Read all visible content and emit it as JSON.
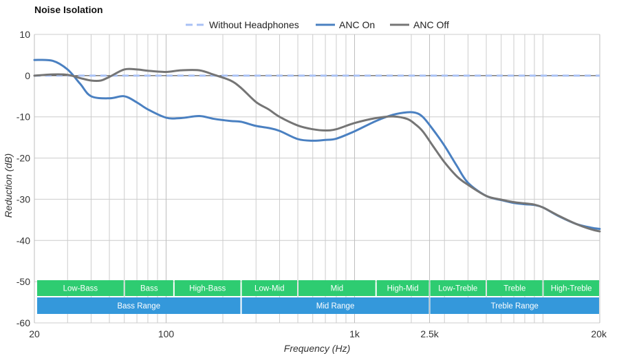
{
  "chart_data": {
    "type": "line",
    "title": "Noise Isolation",
    "xlabel": "Frequency (Hz)",
    "ylabel": "Reduction (dB)",
    "xscale": "log",
    "xlim": [
      20,
      20000
    ],
    "ylim": [
      -60,
      10
    ],
    "x_ticks": [
      {
        "value": 20,
        "label": "20"
      },
      {
        "value": 100,
        "label": "100"
      },
      {
        "value": 1000,
        "label": "1k"
      },
      {
        "value": 2500,
        "label": "2.5k"
      },
      {
        "value": 20000,
        "label": "20k"
      }
    ],
    "y_ticks": [
      {
        "value": 10,
        "label": "10"
      },
      {
        "value": 0,
        "label": "0"
      },
      {
        "value": -10,
        "label": "-10"
      },
      {
        "value": -20,
        "label": "-20"
      },
      {
        "value": -30,
        "label": "-30"
      },
      {
        "value": -40,
        "label": "-40"
      },
      {
        "value": -50,
        "label": "-50"
      },
      {
        "value": -60,
        "label": "-60"
      }
    ],
    "minor_gridlines_x": [
      30,
      40,
      50,
      60,
      70,
      80,
      90,
      200,
      300,
      400,
      500,
      600,
      700,
      800,
      900,
      2000,
      3000,
      4000,
      5000,
      6000,
      7000,
      8000,
      9000,
      10000
    ],
    "grid": true,
    "legend": "top-center",
    "series": [
      {
        "name": "Without Headphones",
        "color": "#a9c1f5",
        "style": "dashed",
        "x": [
          20,
          20000
        ],
        "values": [
          0,
          0
        ]
      },
      {
        "name": "ANC On",
        "color": "#4a80c1",
        "style": "solid",
        "x": [
          20,
          25,
          30,
          35,
          40,
          50,
          60,
          70,
          80,
          100,
          120,
          150,
          180,
          220,
          250,
          300,
          350,
          400,
          500,
          600,
          700,
          800,
          1000,
          1300,
          1600,
          1900,
          2100,
          2300,
          2600,
          3000,
          3500,
          4000,
          5000,
          6000,
          7000,
          8000,
          9000,
          10000,
          12000,
          15000,
          18000,
          20000
        ],
        "values": [
          3.8,
          3.6,
          1.5,
          -2.0,
          -5.0,
          -5.5,
          -5.0,
          -6.5,
          -8.2,
          -10.2,
          -10.3,
          -9.8,
          -10.5,
          -11.0,
          -11.2,
          -12.2,
          -12.7,
          -13.4,
          -15.4,
          -15.8,
          -15.6,
          -15.3,
          -13.5,
          -11.0,
          -9.5,
          -8.9,
          -9.0,
          -10.0,
          -13.0,
          -17.0,
          -22.0,
          -26.0,
          -29.2,
          -30.2,
          -30.9,
          -31.2,
          -31.4,
          -32.0,
          -34.0,
          -36.0,
          -36.9,
          -37.2
        ]
      },
      {
        "name": "ANC Off",
        "color": "#757575",
        "style": "solid",
        "x": [
          20,
          25,
          30,
          35,
          40,
          45,
          50,
          60,
          70,
          80,
          100,
          120,
          150,
          180,
          220,
          250,
          300,
          350,
          400,
          500,
          600,
          700,
          800,
          1000,
          1300,
          1600,
          1900,
          2100,
          2300,
          2600,
          3000,
          3500,
          4000,
          5000,
          6000,
          7000,
          8000,
          9000,
          10000,
          12000,
          15000,
          18000,
          20000
        ],
        "values": [
          0,
          0.3,
          0.2,
          -0.6,
          -1.2,
          -1.2,
          -0.3,
          1.5,
          1.5,
          1.2,
          0.9,
          1.3,
          1.3,
          0.2,
          -1.2,
          -3.0,
          -6.4,
          -8.2,
          -10.0,
          -12.1,
          -13.0,
          -13.3,
          -13.0,
          -11.5,
          -10.3,
          -9.9,
          -10.5,
          -11.8,
          -13.5,
          -17.0,
          -21.0,
          -24.5,
          -26.5,
          -29.2,
          -30.1,
          -30.7,
          -31.0,
          -31.3,
          -32.0,
          -33.9,
          -36.0,
          -37.3,
          -37.8
        ]
      }
    ],
    "range_bands": [
      {
        "label": "Low-Bass",
        "from": 20,
        "to": 60,
        "row": 1,
        "color": "#2ecc71"
      },
      {
        "label": "Bass",
        "from": 60,
        "to": 110,
        "row": 1,
        "color": "#2ecc71"
      },
      {
        "label": "High-Bass",
        "from": 110,
        "to": 250,
        "row": 1,
        "color": "#2ecc71"
      },
      {
        "label": "Low-Mid",
        "from": 250,
        "to": 500,
        "row": 1,
        "color": "#2ecc71"
      },
      {
        "label": "Mid",
        "from": 500,
        "to": 1300,
        "row": 1,
        "color": "#2ecc71"
      },
      {
        "label": "High-Mid",
        "from": 1300,
        "to": 2500,
        "row": 1,
        "color": "#2ecc71"
      },
      {
        "label": "Low-Treble",
        "from": 2500,
        "to": 5000,
        "row": 1,
        "color": "#2ecc71"
      },
      {
        "label": "Treble",
        "from": 5000,
        "to": 10000,
        "row": 1,
        "color": "#2ecc71"
      },
      {
        "label": "High-Treble",
        "from": 10000,
        "to": 20000,
        "row": 1,
        "color": "#2ecc71"
      },
      {
        "label": "Bass Range",
        "from": 20,
        "to": 250,
        "row": 2,
        "color": "#3498db"
      },
      {
        "label": "Mid Range",
        "from": 250,
        "to": 2500,
        "row": 2,
        "color": "#3498db"
      },
      {
        "label": "Treble Range",
        "from": 2500,
        "to": 20000,
        "row": 2,
        "color": "#3498db"
      }
    ]
  }
}
